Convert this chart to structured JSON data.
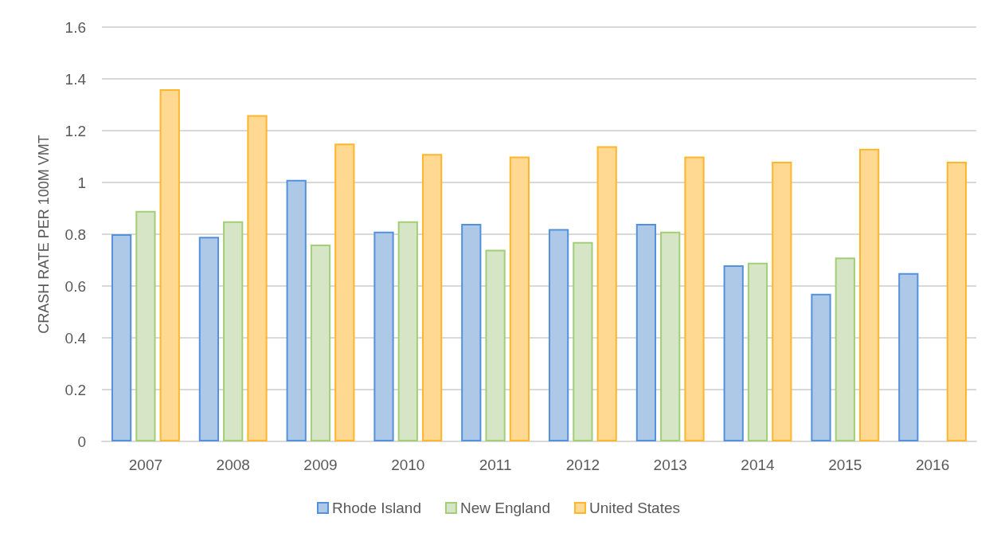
{
  "chart_data": {
    "type": "bar",
    "ylabel": "CRASH RATE PER 100M VMT",
    "categories": [
      "2007",
      "2008",
      "2009",
      "2010",
      "2011",
      "2012",
      "2013",
      "2014",
      "2015",
      "2016"
    ],
    "series": [
      {
        "name": "Rhode Island",
        "color": "#aec8e8",
        "values": [
          0.8,
          0.79,
          1.01,
          0.81,
          0.84,
          0.82,
          0.84,
          0.68,
          0.57,
          0.65
        ]
      },
      {
        "name": "New England",
        "color": "#d5e5c5",
        "values": [
          0.89,
          0.85,
          0.76,
          0.85,
          0.74,
          0.77,
          0.81,
          0.69,
          0.71,
          null
        ]
      },
      {
        "name": "United States",
        "color": "#ffd992",
        "values": [
          1.36,
          1.26,
          1.15,
          1.11,
          1.1,
          1.14,
          1.1,
          1.08,
          1.13,
          1.08
        ]
      }
    ],
    "ylim": [
      0,
      1.6
    ],
    "yticks": [
      0,
      0.2,
      0.4,
      0.6,
      0.8,
      1,
      1.2,
      1.4,
      1.6
    ],
    "grid": "y",
    "legend": "bottom"
  }
}
